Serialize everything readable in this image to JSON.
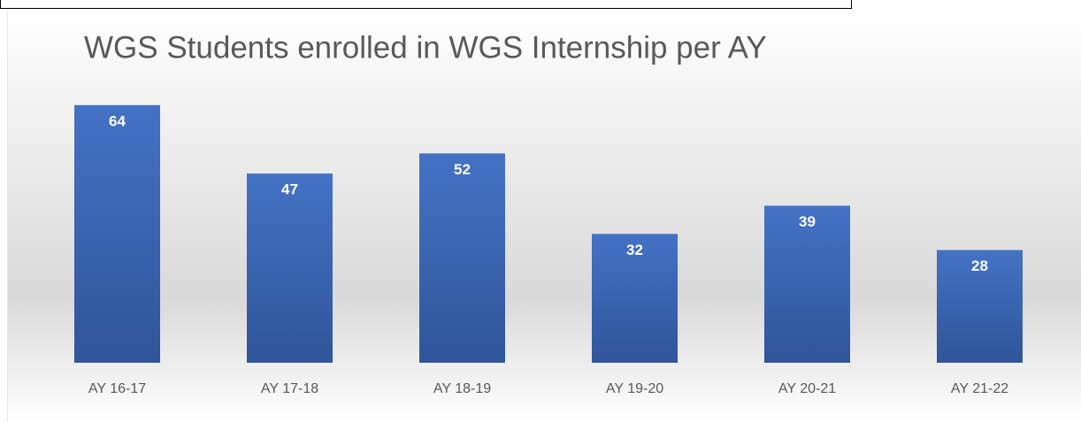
{
  "chart_data": {
    "type": "bar",
    "title": "WGS Students enrolled in WGS Internship per AY",
    "categories": [
      "AY 16-17",
      "AY 17-18",
      "AY 18-19",
      "AY 19-20",
      "AY 20-21",
      "AY 21-22"
    ],
    "values": [
      64,
      47,
      52,
      32,
      39,
      28
    ],
    "color": "#4472c4",
    "ylim": [
      0,
      70
    ],
    "grid": false
  }
}
